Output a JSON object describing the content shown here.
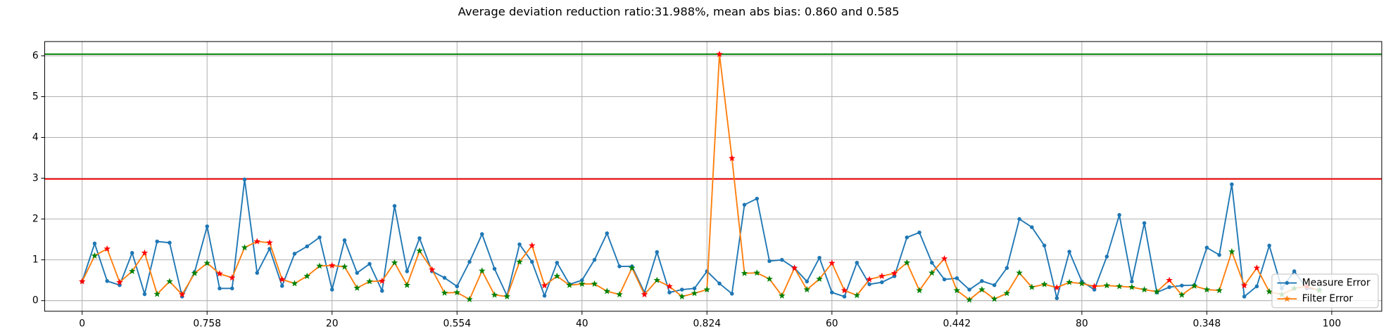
{
  "chart_data": {
    "type": "line",
    "title": "Average deviation reduction ratio:31.988%, mean abs bias: 0.860 and 0.585",
    "x": [
      0,
      1,
      2,
      3,
      4,
      5,
      6,
      7,
      8,
      9,
      10,
      11,
      12,
      13,
      14,
      15,
      16,
      17,
      18,
      19,
      20,
      21,
      22,
      23,
      24,
      25,
      26,
      27,
      28,
      29,
      30,
      31,
      32,
      33,
      34,
      35,
      36,
      37,
      38,
      39,
      40,
      41,
      42,
      43,
      44,
      45,
      46,
      47,
      48,
      49,
      50,
      51,
      52,
      53,
      54,
      55,
      56,
      57,
      58,
      59,
      60,
      61,
      62,
      63,
      64,
      65,
      66,
      67,
      68,
      69,
      70,
      71,
      72,
      73,
      74,
      75,
      76,
      77,
      78,
      79,
      80,
      81,
      82,
      83,
      84,
      85,
      86,
      87,
      88,
      89,
      90,
      91,
      92,
      93,
      94,
      95,
      96,
      97,
      98,
      99
    ],
    "series": [
      {
        "name": "Measure Error",
        "color": "#1f77b4",
        "marker": "dot",
        "values": [
          0.47,
          1.4,
          0.48,
          0.38,
          1.17,
          0.16,
          1.45,
          1.42,
          0.1,
          0.7,
          1.82,
          0.3,
          0.3,
          2.97,
          0.68,
          1.27,
          0.36,
          1.15,
          1.33,
          1.55,
          0.27,
          1.48,
          0.68,
          0.9,
          0.24,
          2.32,
          0.72,
          1.53,
          0.72,
          0.56,
          0.35,
          0.95,
          1.63,
          0.78,
          0.12,
          1.38,
          0.95,
          0.12,
          0.93,
          0.4,
          0.5,
          1.0,
          1.65,
          0.84,
          0.84,
          0.2,
          1.19,
          0.2,
          0.27,
          0.3,
          0.72,
          0.42,
          0.17,
          2.35,
          2.5,
          0.97,
          1.0,
          0.8,
          0.47,
          1.05,
          0.2,
          0.1,
          0.93,
          0.4,
          0.45,
          0.6,
          1.55,
          1.67,
          0.93,
          0.52,
          0.55,
          0.27,
          0.48,
          0.38,
          0.8,
          2.0,
          1.8,
          1.35,
          0.06,
          1.2,
          0.47,
          0.27,
          1.08,
          2.1,
          0.47,
          1.9,
          0.2,
          0.33,
          0.37,
          0.38,
          1.3,
          1.12,
          2.85,
          0.1,
          0.35,
          1.35,
          0.3,
          0.72,
          0.3,
          0.27
        ]
      },
      {
        "name": "Filter Error",
        "color": "#ff7f0e",
        "marker": "star",
        "values": [
          0.47,
          1.1,
          1.27,
          0.45,
          0.72,
          1.17,
          0.16,
          0.47,
          0.15,
          0.67,
          0.92,
          0.66,
          0.56,
          1.3,
          1.45,
          1.42,
          0.52,
          0.42,
          0.6,
          0.85,
          0.86,
          0.83,
          0.31,
          0.47,
          0.48,
          0.93,
          0.38,
          1.22,
          0.76,
          0.19,
          0.2,
          0.03,
          0.73,
          0.14,
          0.1,
          0.95,
          1.35,
          0.37,
          0.6,
          0.38,
          0.41,
          0.41,
          0.23,
          0.15,
          0.8,
          0.15,
          0.5,
          0.35,
          0.1,
          0.18,
          0.27,
          6.04,
          3.49,
          0.67,
          0.68,
          0.53,
          0.12,
          0.8,
          0.27,
          0.53,
          0.92,
          0.25,
          0.13,
          0.52,
          0.6,
          0.67,
          0.93,
          0.25,
          0.68,
          1.03,
          0.25,
          0.02,
          0.27,
          0.04,
          0.18,
          0.68,
          0.33,
          0.4,
          0.32,
          0.45,
          0.42,
          0.35,
          0.37,
          0.35,
          0.33,
          0.27,
          0.22,
          0.5,
          0.14,
          0.36,
          0.27,
          0.25,
          1.2,
          0.37,
          0.8,
          0.22,
          0.15,
          0.3,
          0.35,
          0.25
        ],
        "marker_colors": [
          "red",
          "green",
          "red",
          "red",
          "green",
          "red",
          "green",
          "green",
          "red",
          "green",
          "green",
          "red",
          "red",
          "green",
          "red",
          "red",
          "red",
          "green",
          "green",
          "green",
          "red",
          "green",
          "green",
          "green",
          "red",
          "green",
          "green",
          "green",
          "red",
          "green",
          "green",
          "green",
          "green",
          "green",
          "green",
          "green",
          "red",
          "red",
          "green",
          "green",
          "green",
          "green",
          "green",
          "green",
          "green",
          "red",
          "green",
          "red",
          "green",
          "green",
          "green",
          "red",
          "red",
          "green",
          "green",
          "green",
          "green",
          "red",
          "green",
          "green",
          "red",
          "red",
          "green",
          "red",
          "red",
          "red",
          "green",
          "green",
          "green",
          "red",
          "green",
          "green",
          "green",
          "green",
          "green",
          "green",
          "green",
          "green",
          "red",
          "green",
          "green",
          "red",
          "green",
          "green",
          "green",
          "green",
          "green",
          "red",
          "green",
          "green",
          "green",
          "green",
          "green",
          "red",
          "red",
          "green",
          "green",
          "green",
          "red",
          "green"
        ]
      }
    ],
    "hlines": [
      {
        "value": 6.04,
        "color": "green"
      },
      {
        "value": 2.98,
        "color": "red"
      }
    ],
    "xlim": [
      -3,
      104
    ],
    "ylim": [
      -0.26,
      6.35
    ],
    "xticks": [
      0,
      {
        "value": 10,
        "label": "0.758"
      },
      20,
      {
        "value": 30,
        "label": "0.554"
      },
      40,
      {
        "value": 50,
        "label": "0.824"
      },
      60,
      {
        "value": 70,
        "label": "0.442"
      },
      80,
      {
        "value": 90,
        "label": "0.348"
      },
      100
    ],
    "yticks": [
      0,
      1,
      2,
      3,
      4,
      5,
      6
    ],
    "grid": true,
    "legend": "lower right"
  }
}
